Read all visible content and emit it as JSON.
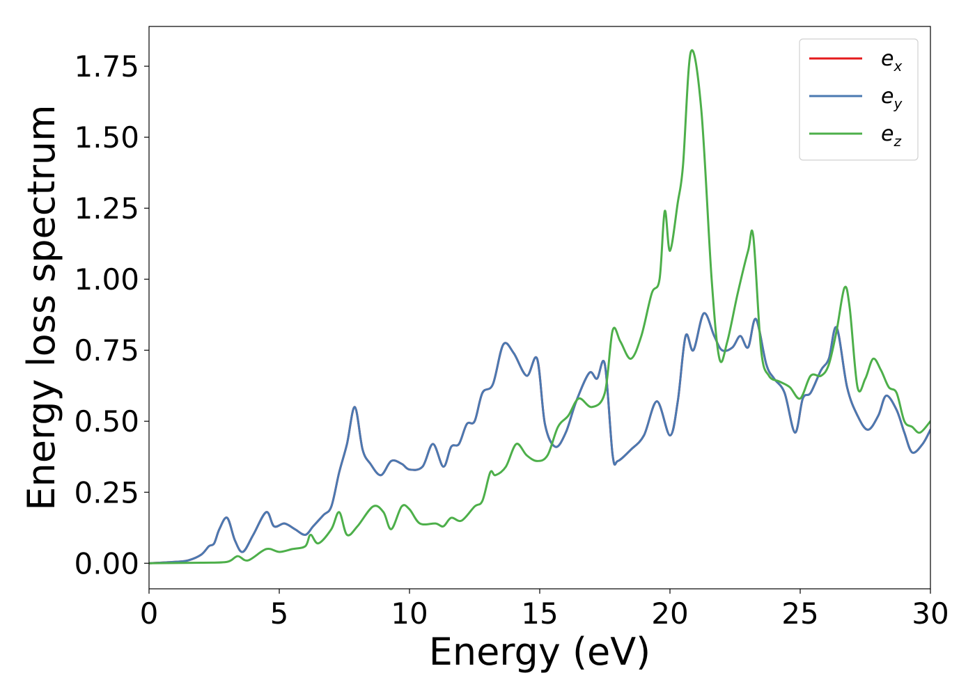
{
  "chart_data": {
    "type": "line",
    "title": "",
    "xlabel": "Energy (eV)",
    "ylabel": "Energy loss spectrum",
    "xlim": [
      0,
      30
    ],
    "ylim": [
      -0.09,
      1.89
    ],
    "xticks": [
      0,
      5,
      10,
      15,
      20,
      25,
      30
    ],
    "xtick_labels": [
      "0",
      "5",
      "10",
      "15",
      "20",
      "25",
      "30"
    ],
    "yticks": [
      0.0,
      0.25,
      0.5,
      0.75,
      1.0,
      1.25,
      1.5,
      1.75
    ],
    "ytick_labels": [
      "0.00",
      "0.25",
      "0.50",
      "0.75",
      "1.00",
      "1.25",
      "1.50",
      "1.75"
    ],
    "grid": false,
    "legend": "top-right",
    "series": [
      {
        "name": "e_x",
        "legend_base": "e",
        "legend_sub": "x",
        "color": "#e41a1c",
        "x": [
          0,
          1,
          1.5,
          2,
          2.3,
          2.5,
          2.7,
          3.0,
          3.3,
          3.6,
          4.0,
          4.5,
          4.8,
          5.2,
          5.6,
          6.0,
          6.3,
          6.7,
          7.0,
          7.3,
          7.6,
          7.9,
          8.2,
          8.5,
          8.9,
          9.3,
          9.7,
          10.0,
          10.5,
          10.9,
          11.3,
          11.6,
          11.9,
          12.2,
          12.5,
          12.8,
          13.2,
          13.6,
          14.0,
          14.5,
          14.9,
          15.2,
          15.6,
          16.0,
          16.4,
          16.9,
          17.2,
          17.5,
          17.8,
          18.0,
          18.5,
          19.0,
          19.5,
          20.0,
          20.3,
          20.6,
          20.9,
          21.3,
          21.7,
          22.0,
          22.4,
          22.7,
          23.0,
          23.3,
          23.7,
          24.0,
          24.4,
          24.8,
          25.1,
          25.4,
          25.8,
          26.1,
          26.4,
          26.8,
          27.2,
          27.6,
          28.0,
          28.3,
          28.7,
          29.0,
          29.3,
          29.7,
          30.0
        ],
        "y": [
          0.0,
          0.005,
          0.01,
          0.03,
          0.06,
          0.07,
          0.12,
          0.16,
          0.08,
          0.04,
          0.1,
          0.18,
          0.13,
          0.14,
          0.12,
          0.1,
          0.13,
          0.17,
          0.2,
          0.32,
          0.42,
          0.55,
          0.4,
          0.35,
          0.31,
          0.36,
          0.35,
          0.33,
          0.34,
          0.42,
          0.34,
          0.41,
          0.42,
          0.49,
          0.5,
          0.6,
          0.63,
          0.77,
          0.74,
          0.66,
          0.72,
          0.49,
          0.41,
          0.46,
          0.57,
          0.67,
          0.65,
          0.7,
          0.38,
          0.36,
          0.4,
          0.45,
          0.57,
          0.45,
          0.57,
          0.8,
          0.75,
          0.88,
          0.8,
          0.75,
          0.76,
          0.8,
          0.76,
          0.86,
          0.7,
          0.65,
          0.6,
          0.46,
          0.58,
          0.6,
          0.68,
          0.72,
          0.83,
          0.62,
          0.52,
          0.47,
          0.52,
          0.59,
          0.54,
          0.46,
          0.39,
          0.42,
          0.47
        ]
      },
      {
        "name": "e_y",
        "legend_base": "e",
        "legend_sub": "y",
        "color": "#4a79b1",
        "x": [
          0,
          1,
          1.5,
          2,
          2.3,
          2.5,
          2.7,
          3.0,
          3.3,
          3.6,
          4.0,
          4.5,
          4.8,
          5.2,
          5.6,
          6.0,
          6.3,
          6.7,
          7.0,
          7.3,
          7.6,
          7.9,
          8.2,
          8.5,
          8.9,
          9.3,
          9.7,
          10.0,
          10.5,
          10.9,
          11.3,
          11.6,
          11.9,
          12.2,
          12.5,
          12.8,
          13.2,
          13.6,
          14.0,
          14.5,
          14.9,
          15.2,
          15.6,
          16.0,
          16.4,
          16.9,
          17.2,
          17.5,
          17.8,
          18.0,
          18.5,
          19.0,
          19.5,
          20.0,
          20.3,
          20.6,
          20.9,
          21.3,
          21.7,
          22.0,
          22.4,
          22.7,
          23.0,
          23.3,
          23.7,
          24.0,
          24.4,
          24.8,
          25.1,
          25.4,
          25.8,
          26.1,
          26.4,
          26.8,
          27.2,
          27.6,
          28.0,
          28.3,
          28.7,
          29.0,
          29.3,
          29.7,
          30.0
        ],
        "y": [
          0.0,
          0.005,
          0.01,
          0.03,
          0.06,
          0.07,
          0.12,
          0.16,
          0.08,
          0.04,
          0.1,
          0.18,
          0.13,
          0.14,
          0.12,
          0.1,
          0.13,
          0.17,
          0.2,
          0.32,
          0.42,
          0.55,
          0.4,
          0.35,
          0.31,
          0.36,
          0.35,
          0.33,
          0.34,
          0.42,
          0.34,
          0.41,
          0.42,
          0.49,
          0.5,
          0.6,
          0.63,
          0.77,
          0.74,
          0.66,
          0.72,
          0.49,
          0.41,
          0.46,
          0.57,
          0.67,
          0.65,
          0.7,
          0.38,
          0.36,
          0.4,
          0.45,
          0.57,
          0.45,
          0.57,
          0.8,
          0.75,
          0.88,
          0.8,
          0.75,
          0.76,
          0.8,
          0.76,
          0.86,
          0.7,
          0.65,
          0.6,
          0.46,
          0.58,
          0.6,
          0.68,
          0.72,
          0.83,
          0.62,
          0.52,
          0.47,
          0.52,
          0.59,
          0.54,
          0.46,
          0.39,
          0.42,
          0.47
        ]
      },
      {
        "name": "e_z",
        "legend_base": "e",
        "legend_sub": "z",
        "color": "#4daf4a",
        "x": [
          0,
          2,
          3.0,
          3.4,
          3.8,
          4.5,
          5.0,
          5.5,
          6.0,
          6.2,
          6.5,
          7.0,
          7.3,
          7.6,
          8.0,
          8.6,
          9.0,
          9.3,
          9.7,
          10.0,
          10.4,
          11.0,
          11.3,
          11.6,
          12.0,
          12.5,
          12.8,
          13.1,
          13.3,
          13.7,
          14.1,
          14.5,
          14.9,
          15.3,
          15.7,
          16.1,
          16.5,
          17.0,
          17.5,
          17.8,
          18.1,
          18.5,
          18.9,
          19.3,
          19.6,
          19.8,
          20.0,
          20.3,
          20.5,
          20.8,
          21.2,
          21.6,
          21.9,
          22.2,
          22.6,
          23.0,
          23.2,
          23.5,
          23.8,
          24.2,
          24.6,
          25.0,
          25.4,
          25.8,
          26.1,
          26.4,
          26.7,
          26.9,
          27.2,
          27.5,
          27.8,
          28.1,
          28.4,
          28.7,
          29.0,
          29.3,
          29.6,
          30.0
        ],
        "y": [
          0.0,
          0.002,
          0.005,
          0.025,
          0.01,
          0.05,
          0.04,
          0.05,
          0.06,
          0.1,
          0.07,
          0.12,
          0.18,
          0.1,
          0.13,
          0.2,
          0.18,
          0.12,
          0.2,
          0.19,
          0.14,
          0.14,
          0.13,
          0.16,
          0.15,
          0.2,
          0.22,
          0.32,
          0.31,
          0.34,
          0.42,
          0.38,
          0.36,
          0.38,
          0.48,
          0.52,
          0.58,
          0.55,
          0.6,
          0.82,
          0.78,
          0.72,
          0.8,
          0.95,
          1.0,
          1.24,
          1.1,
          1.27,
          1.4,
          1.8,
          1.6,
          1.0,
          0.72,
          0.78,
          0.95,
          1.1,
          1.15,
          0.75,
          0.66,
          0.64,
          0.62,
          0.58,
          0.66,
          0.66,
          0.7,
          0.82,
          0.97,
          0.9,
          0.62,
          0.65,
          0.72,
          0.68,
          0.62,
          0.6,
          0.5,
          0.48,
          0.46,
          0.5
        ]
      }
    ]
  }
}
